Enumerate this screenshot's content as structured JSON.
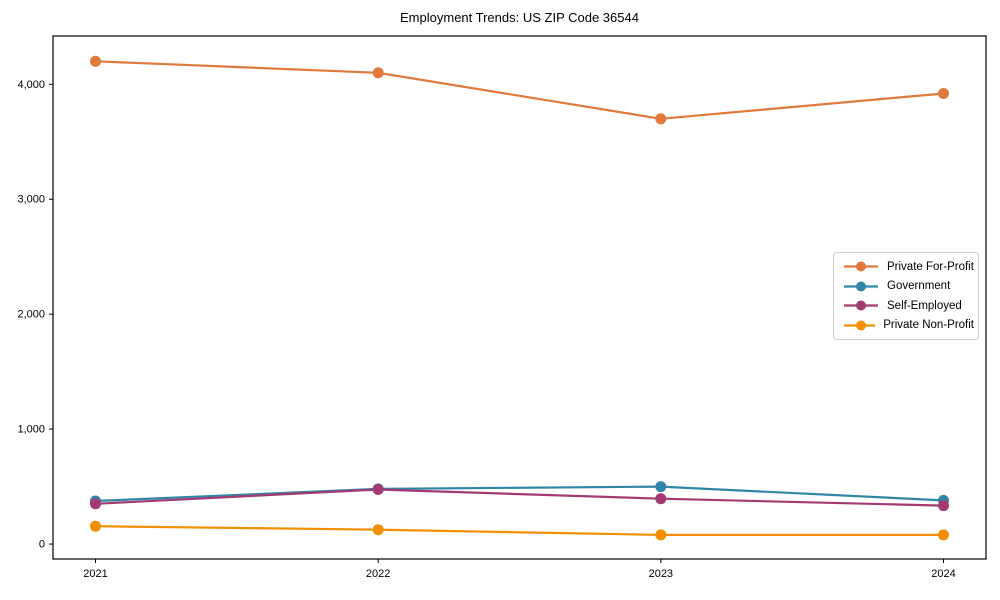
{
  "chart_data": {
    "type": "line",
    "title": "Employment Trends: US ZIP Code 36544",
    "x": [
      2021,
      2022,
      2023,
      2024
    ],
    "xtick_labels": [
      "2021",
      "2022",
      "2023",
      "2024"
    ],
    "ytick_values": [
      0,
      1000,
      2000,
      3000,
      4000
    ],
    "ytick_labels": [
      "0",
      "1,000",
      "2,000",
      "3,000",
      "4,000"
    ],
    "ylim": [
      -130,
      4420
    ],
    "xlabel": "",
    "ylabel": "",
    "grid": false,
    "legend_position": "center-right",
    "series": [
      {
        "name": "Private For-Profit",
        "color": "#E0793C",
        "values": [
          4200,
          4100,
          3700,
          3920
        ]
      },
      {
        "name": "Government",
        "color": "#3186A6",
        "values": [
          375,
          480,
          500,
          380
        ]
      },
      {
        "name": "Self-Employed",
        "color": "#A23B72",
        "values": [
          350,
          475,
          395,
          335
        ]
      },
      {
        "name": "Private Non-Profit",
        "color": "#F18F01",
        "values": [
          155,
          125,
          80,
          80
        ]
      }
    ],
    "axis_color": "#000000",
    "tick_label_color": "#000000",
    "marker": "circle",
    "marker_radius": 5.5,
    "line_width": 2.2
  }
}
